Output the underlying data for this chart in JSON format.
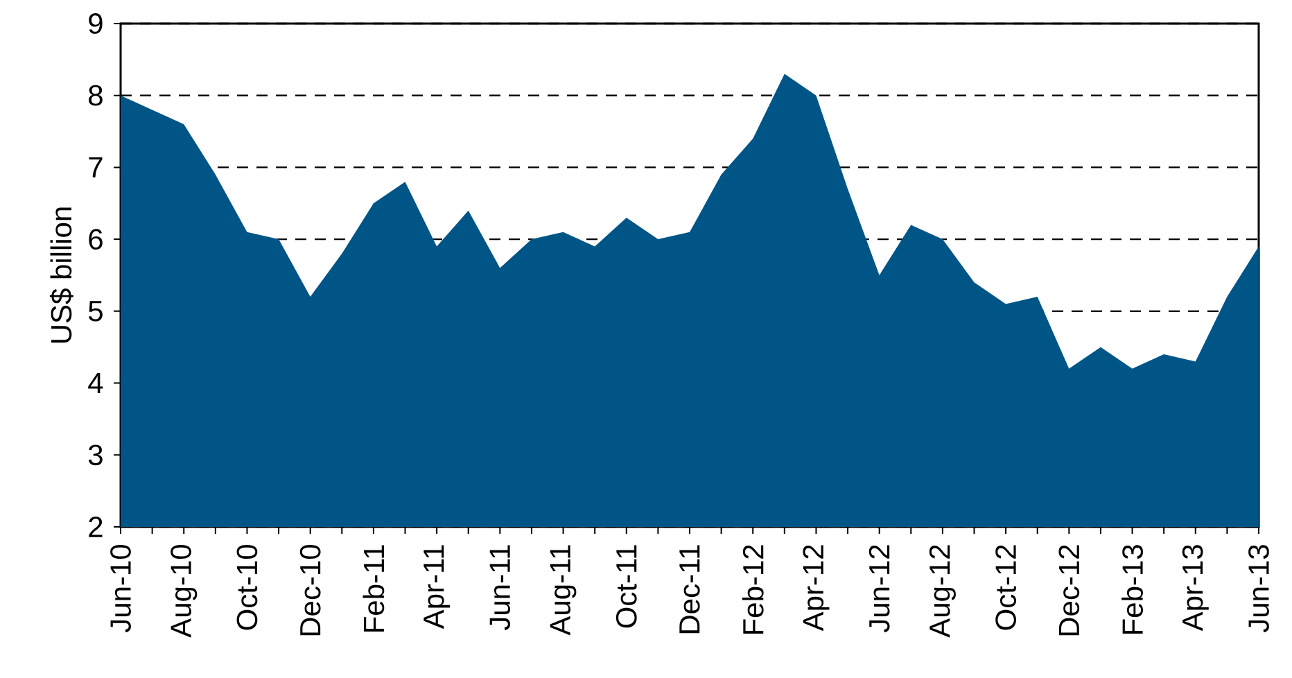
{
  "chart_data": {
    "type": "area",
    "ylabel": "US$  billion",
    "categories": [
      "Jun-10",
      null,
      "Aug-10",
      null,
      "Oct-10",
      null,
      "Dec-10",
      null,
      "Feb-11",
      null,
      "Apr-11",
      null,
      "Jun-11",
      null,
      "Aug-11",
      null,
      "Oct-11",
      null,
      "Dec-11",
      null,
      "Feb-12",
      null,
      "Apr-12",
      null,
      "Jun-12",
      null,
      "Aug-12",
      null,
      "Oct-12",
      null,
      "Dec-12",
      null,
      "Feb-13",
      null,
      "Apr-13",
      null,
      "Jun-13"
    ],
    "values": [
      8.0,
      7.8,
      7.6,
      6.9,
      6.1,
      6.0,
      5.2,
      5.8,
      6.5,
      6.8,
      5.9,
      6.4,
      5.6,
      6.0,
      6.1,
      5.9,
      6.3,
      6.0,
      6.1,
      6.9,
      7.4,
      8.3,
      8.0,
      6.7,
      5.5,
      6.2,
      6.0,
      5.4,
      5.1,
      5.2,
      4.2,
      4.5,
      4.2,
      4.4,
      4.3,
      5.2,
      5.9
    ],
    "color": "#005587",
    "ylim": [
      2,
      9
    ],
    "yticks": [
      2,
      3,
      4,
      5,
      6,
      7,
      8,
      9
    ],
    "grid": "y"
  }
}
